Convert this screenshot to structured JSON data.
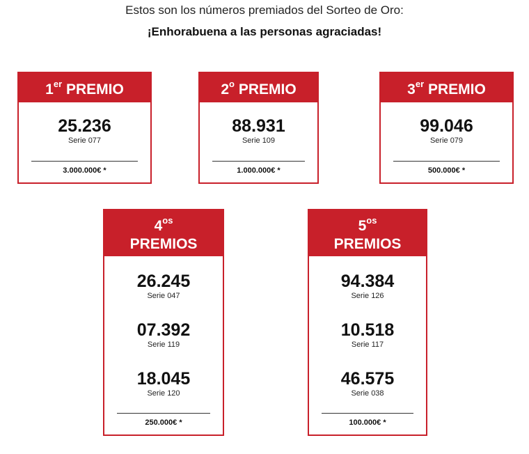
{
  "header": {
    "intro": "Estos son los números premiados del Sorteo de Oro:",
    "congrats": "¡Enhorabuena a las personas agraciadas!"
  },
  "prizes": [
    {
      "ordinal": "1",
      "suffix": "er",
      "label": "PREMIO",
      "draws": [
        {
          "number": "25.236",
          "serie": "Serie 077"
        }
      ],
      "amount": "3.000.000€ *"
    },
    {
      "ordinal": "2",
      "suffix": "o",
      "label": "PREMIO",
      "draws": [
        {
          "number": "88.931",
          "serie": "Serie 109"
        }
      ],
      "amount": "1.000.000€ *"
    },
    {
      "ordinal": "3",
      "suffix": "er",
      "label": "PREMIO",
      "draws": [
        {
          "number": "99.046",
          "serie": "Serie 079"
        }
      ],
      "amount": "500.000€ *"
    },
    {
      "ordinal": "4",
      "suffix": "os",
      "label": "PREMIOS",
      "draws": [
        {
          "number": "26.245",
          "serie": "Serie 047"
        },
        {
          "number": "07.392",
          "serie": "Serie 119"
        },
        {
          "number": "18.045",
          "serie": "Serie 120"
        }
      ],
      "amount": "250.000€ *"
    },
    {
      "ordinal": "5",
      "suffix": "os",
      "label": "PREMIOS",
      "draws": [
        {
          "number": "94.384",
          "serie": "Serie 126"
        },
        {
          "number": "10.518",
          "serie": "Serie 117"
        },
        {
          "number": "46.575",
          "serie": "Serie 038"
        }
      ],
      "amount": "100.000€ *"
    }
  ]
}
